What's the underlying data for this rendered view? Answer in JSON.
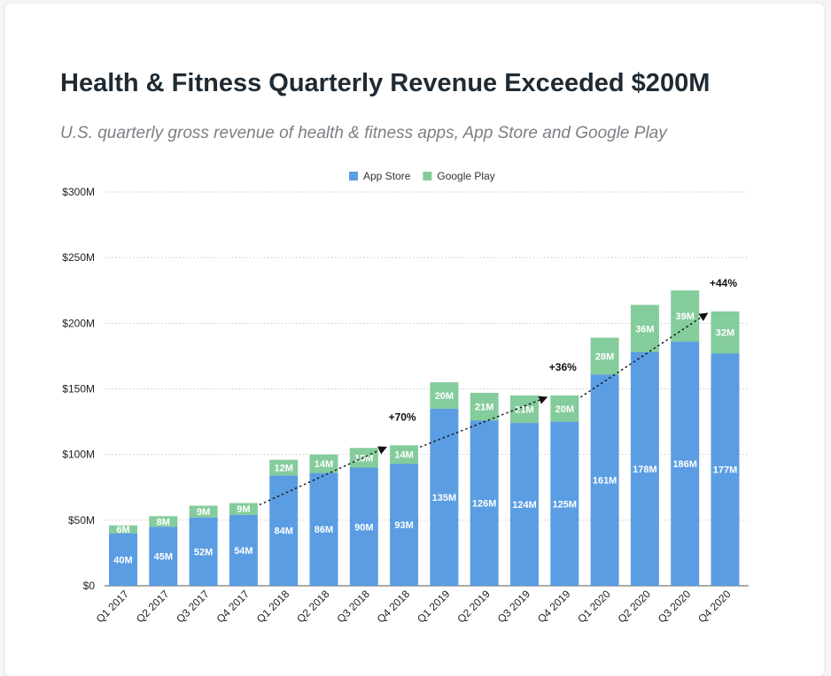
{
  "header": {
    "title": "Health & Fitness Quarterly Revenue Exceeded $200M",
    "subtitle": "U.S. quarterly gross revenue of health & fitness apps, App Store and Google Play"
  },
  "chart_data": {
    "type": "bar",
    "stacked": true,
    "categories": [
      "Q1 2017",
      "Q2 2017",
      "Q3 2017",
      "Q4 2017",
      "Q1 2018",
      "Q2 2018",
      "Q3 2018",
      "Q4 2018",
      "Q1 2019",
      "Q2 2019",
      "Q3 2019",
      "Q4 2019",
      "Q1 2020",
      "Q2 2020",
      "Q3 2020",
      "Q4 2020"
    ],
    "series": [
      {
        "name": "App Store",
        "color": "#5b9de3",
        "values": [
          40,
          45,
          52,
          54,
          84,
          86,
          90,
          93,
          135,
          126,
          124,
          125,
          161,
          178,
          186,
          177
        ],
        "labels": [
          "40M",
          "45M",
          "52M",
          "54M",
          "84M",
          "86M",
          "90M",
          "93M",
          "135M",
          "126M",
          "124M",
          "125M",
          "161M",
          "178M",
          "186M",
          "177M"
        ]
      },
      {
        "name": "Google Play",
        "color": "#84cc9c",
        "values": [
          6,
          8,
          9,
          9,
          12,
          14,
          15,
          14,
          20,
          21,
          21,
          20,
          28,
          36,
          39,
          32
        ],
        "labels": [
          "6M",
          "8M",
          "9M",
          "9M",
          "12M",
          "14M",
          "15M",
          "14M",
          "20M",
          "21M",
          "21M",
          "20M",
          "28M",
          "36M",
          "39M",
          "32M"
        ]
      }
    ],
    "ylim": [
      0,
      300
    ],
    "yticks": [
      {
        "value": 0,
        "label": "$0"
      },
      {
        "value": 50,
        "label": "$50M"
      },
      {
        "value": 100,
        "label": "$100M"
      },
      {
        "value": 150,
        "label": "$150M"
      },
      {
        "value": 200,
        "label": "$200M"
      },
      {
        "value": 250,
        "label": "$250M"
      },
      {
        "value": 300,
        "label": "$300M"
      }
    ],
    "grid": true,
    "legend_position": "top-center",
    "annotations": [
      {
        "from": "Q4 2017",
        "to": "Q4 2018",
        "label": "+70%"
      },
      {
        "from": "Q4 2018",
        "to": "Q4 2019",
        "label": "+36%"
      },
      {
        "from": "Q4 2019",
        "to": "Q4 2020",
        "label": "+44%"
      }
    ]
  }
}
